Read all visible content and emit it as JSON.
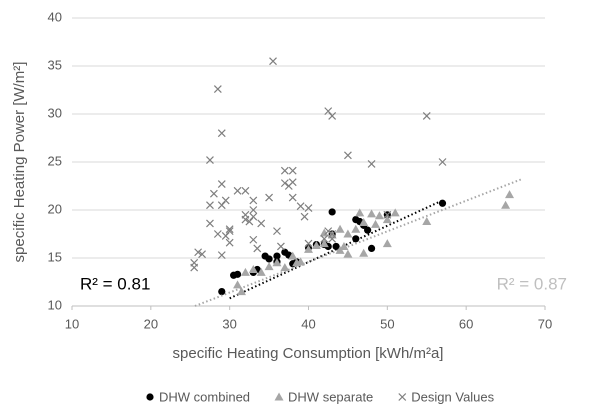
{
  "chart_data": {
    "type": "scatter",
    "x_label": "specific Heating Consumption [kWh/m²a]",
    "y_label": "specific Heating Power [W/m²]",
    "xlim": [
      10,
      70
    ],
    "xticks": [
      10,
      20,
      30,
      40,
      50,
      60,
      70
    ],
    "ylim": [
      10,
      40
    ],
    "yticks": [
      10,
      15,
      20,
      25,
      30,
      35,
      40
    ],
    "grid": true,
    "legend": "bottom",
    "series": [
      {
        "name": "DHW combined",
        "color": "#000000",
        "marker": "circle",
        "x": [
          29,
          30.5,
          31,
          33,
          33.5,
          34.5,
          35,
          36,
          37,
          37.5,
          38,
          38.5,
          40,
          41,
          42,
          43,
          43,
          43.5,
          42.5,
          46,
          46.5,
          47,
          46,
          48,
          47.5,
          50,
          57,
          36
        ],
        "values": [
          11.5,
          13.2,
          13.3,
          13.5,
          13.8,
          15.2,
          14.9,
          14.6,
          15.6,
          15.3,
          14.4,
          14.6,
          16.1,
          16.4,
          16.4,
          19.8,
          17.5,
          16.2,
          16.2,
          19,
          18.8,
          18.4,
          17,
          16,
          17.9,
          19.5,
          20.7,
          15.2
        ],
        "trendline": {
          "x": [
            30,
            57
          ],
          "y": [
            10.8,
            21
          ]
        }
      },
      {
        "name": "DHW separate",
        "color": "#a6a6a6",
        "marker": "triangle",
        "x": [
          31,
          31.5,
          32,
          33,
          34,
          35,
          36,
          37,
          38,
          38.5,
          39,
          40,
          41,
          42,
          42,
          43,
          44,
          44.5,
          45,
          45,
          46,
          46.5,
          47,
          48,
          48.5,
          49,
          50,
          50,
          51,
          55,
          65,
          65.5,
          47,
          44
        ],
        "values": [
          12.2,
          11.5,
          13.5,
          13.8,
          13.5,
          14.1,
          14.5,
          14,
          15.2,
          14.5,
          14.6,
          15.9,
          16.3,
          17.6,
          16.5,
          17.4,
          15.8,
          16.2,
          15.4,
          17.5,
          18,
          19.7,
          18.7,
          19.6,
          18.5,
          19.4,
          19,
          16.5,
          19.7,
          18.8,
          20.5,
          21.6,
          15.5,
          18
        ],
        "trendline": {
          "x": [
            25.6,
            67
          ],
          "y": [
            10,
            23.2
          ]
        }
      },
      {
        "name": "Design Values",
        "color": "#7f7f7f",
        "marker": "x",
        "x": [
          25.5,
          25.5,
          26,
          26.5,
          27.5,
          27.5,
          28,
          27.5,
          28.5,
          28.5,
          29,
          29,
          29,
          29.5,
          29,
          30,
          30,
          30,
          29.5,
          31,
          32,
          32,
          32.5,
          32,
          33,
          33,
          33,
          33,
          33.5,
          35,
          35.5,
          36,
          37,
          37,
          37.5,
          38,
          38,
          38,
          36.5,
          39,
          40,
          39.5,
          42.5,
          43,
          43,
          43,
          42,
          42.5,
          45,
          48,
          50,
          55,
          57,
          40,
          34
        ],
        "values": [
          14,
          14.5,
          15.6,
          15.4,
          18.6,
          20.5,
          21.7,
          25.2,
          17.5,
          32.6,
          28,
          22.7,
          20.5,
          17.3,
          15.3,
          18,
          17.8,
          16.6,
          21,
          22,
          19.5,
          19,
          18.8,
          22,
          21,
          20,
          19.3,
          16.9,
          16,
          21.3,
          35.5,
          17.8,
          22.8,
          24.1,
          22.5,
          24.1,
          22.9,
          21.3,
          16.2,
          20.4,
          20.2,
          19.3,
          30.3,
          29.8,
          17,
          17.5,
          17,
          17.8,
          25.7,
          24.8,
          19.5,
          29.8,
          25,
          16.5,
          18.6
        ]
      }
    ],
    "annotations": [
      {
        "text": "R² = 0.81",
        "color": "#000000"
      },
      {
        "text": "R² = 0.87",
        "color": "#bfbfbf"
      }
    ]
  }
}
